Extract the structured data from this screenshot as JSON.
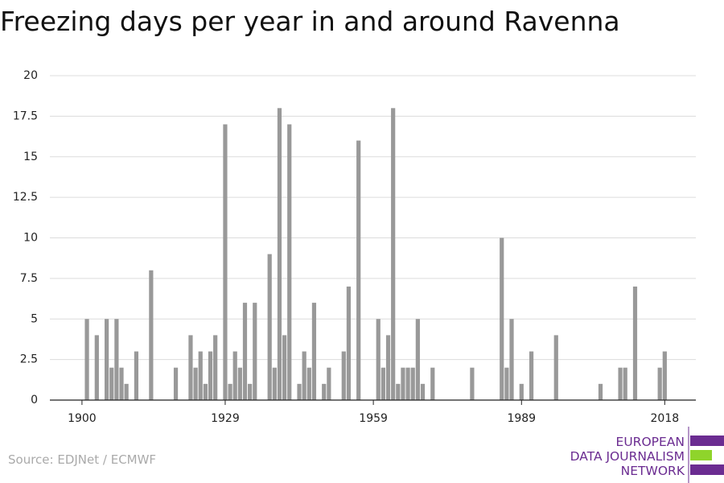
{
  "chart_data": {
    "type": "bar",
    "title": "Freezing days per year in and around Ravenna",
    "source": "Source: EDJNet / ECMWF",
    "color": "#999999",
    "grid": true,
    "x": [
      1901,
      1903,
      1905,
      1906,
      1907,
      1908,
      1909,
      1911,
      1914,
      1919,
      1922,
      1923,
      1924,
      1925,
      1926,
      1927,
      1929,
      1930,
      1931,
      1932,
      1933,
      1934,
      1935,
      1938,
      1939,
      1940,
      1941,
      1942,
      1944,
      1945,
      1946,
      1947,
      1949,
      1950,
      1953,
      1954,
      1956,
      1960,
      1961,
      1962,
      1963,
      1964,
      1965,
      1966,
      1967,
      1968,
      1969,
      1971,
      1979,
      1985,
      1986,
      1987,
      1989,
      1991,
      1996,
      2005,
      2009,
      2010,
      2012,
      2017,
      2018
    ],
    "values": [
      5,
      4,
      5,
      2,
      5,
      2,
      1,
      3,
      8,
      2,
      4,
      2,
      3,
      1,
      3,
      4,
      17,
      1,
      3,
      2,
      6,
      1,
      6,
      9,
      2,
      18,
      4,
      17,
      1,
      3,
      2,
      6,
      1,
      2,
      3,
      7,
      16,
      5,
      2,
      4,
      18,
      1,
      2,
      2,
      2,
      5,
      1,
      2,
      2,
      10,
      2,
      5,
      1,
      3,
      4,
      1,
      2,
      2,
      7,
      2,
      3
    ],
    "xlim": [
      1893.5,
      2024.3
    ],
    "xticks": [
      1900,
      1929,
      1959,
      1989,
      2018
    ],
    "ylim": [
      0,
      20
    ],
    "yticks": [
      0,
      2.5,
      5,
      7.5,
      10,
      12.5,
      15,
      17.5,
      20
    ]
  },
  "logo": {
    "lines": [
      "EUROPEAN",
      "DATA JOURNALISM",
      "NETWORK"
    ]
  }
}
